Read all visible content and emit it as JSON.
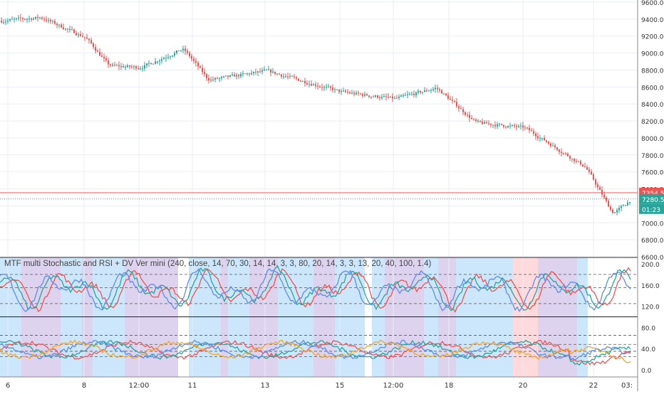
{
  "chart_data": {
    "type": "candlestick",
    "y_ticks": [
      "9600.0",
      "9400.0",
      "9200.0",
      "9000.0",
      "8800.0",
      "8600.0",
      "8400.0",
      "8200.0",
      "8000.0",
      "7800.0",
      "7600.0",
      "7400.0",
      "7200.0",
      "7000.0",
      "6800.0",
      "6600.0"
    ],
    "ylim": [
      6600,
      9600
    ],
    "x_ticks": [
      "6",
      "8",
      "12:00",
      "11",
      "13",
      "15",
      "12:00",
      "18",
      "20",
      "22",
      "03:"
    ],
    "price_labels": {
      "red_value": "7354.5",
      "green_value": "7280.5",
      "countdown": "01:23"
    },
    "ohlc_series": {
      "description_points": [
        [
          "6",
          9380
        ],
        [
          "7",
          9420
        ],
        [
          "8",
          9180
        ],
        [
          "8b",
          8850
        ],
        [
          "12:00",
          8830
        ],
        [
          "11",
          9050
        ],
        [
          "11b",
          8680
        ],
        [
          "13",
          8790
        ],
        [
          "14",
          8650
        ],
        [
          "15",
          8540
        ],
        [
          "12:00b",
          8460
        ],
        [
          "18",
          8590
        ],
        [
          "19",
          8180
        ],
        [
          "20",
          8120
        ],
        [
          "21",
          7650
        ],
        [
          "22",
          7100
        ],
        [
          "03:",
          7285
        ]
      ],
      "y_range": [
        6730,
        9500
      ]
    },
    "indicator": {
      "title": "MTF multi Stochastic and RSI + DV Ver mini (240, close, 14, 70, 30, 14, 14, 3, 3, 80, 20, 14, 3, 3, 13, 20, 40, 100, 1.4)",
      "y_ticks": [
        "200.0",
        "160.0",
        "120.0",
        "80.0",
        "40.0",
        "0.0"
      ],
      "ylim": [
        0,
        200
      ],
      "series": [
        {
          "color": "#ef5350"
        },
        {
          "color": "#26a69a"
        },
        {
          "color": "#5b8def"
        },
        {
          "color": "#f5a623"
        }
      ]
    }
  },
  "colors": {
    "up": "#26a69a",
    "down": "#ef5350",
    "background_blue": "#bbdefb",
    "background_purple": "#d1c4e9",
    "background_red": "#ffcdd2",
    "grid": "#e9eef3"
  }
}
